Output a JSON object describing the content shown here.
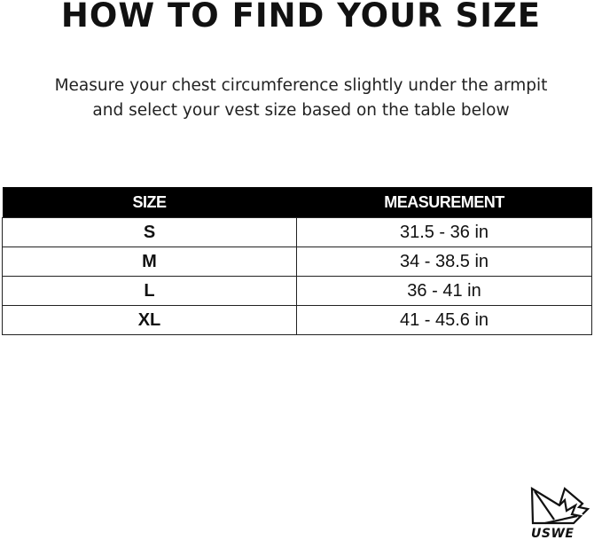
{
  "title": "HOW TO FIND YOUR SIZE",
  "instructions": {
    "line1": "Measure your chest circumference slightly under the armpit",
    "line2": "and select your vest size based on the table below"
  },
  "table": {
    "headers": [
      "SIZE",
      "MEASUREMENT"
    ],
    "rows": [
      {
        "size": "S",
        "measurement": "31.5 - 36 in"
      },
      {
        "size": "M",
        "measurement": "34 - 38.5 in"
      },
      {
        "size": "L",
        "measurement": "36 - 41 in"
      },
      {
        "size": "XL",
        "measurement": "41 - 45.6 in"
      }
    ]
  },
  "logo": {
    "text": "USWE"
  }
}
